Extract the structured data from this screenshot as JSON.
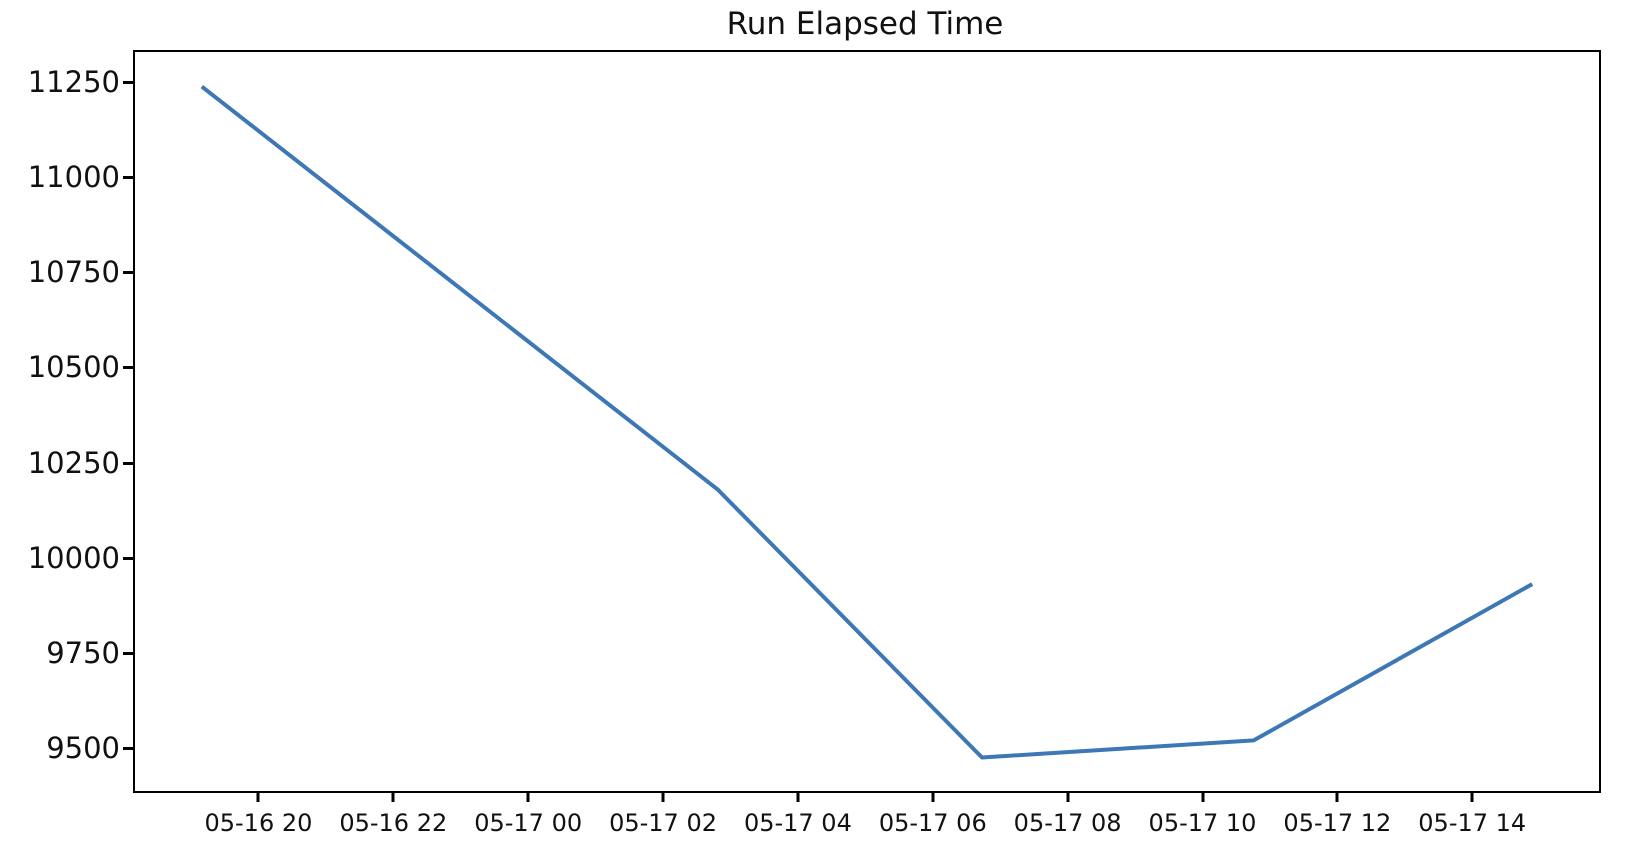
{
  "chart_data": {
    "type": "line",
    "title": "Run Elapsed Time",
    "xlabel": "",
    "ylabel": "",
    "grid": false,
    "legend_visible": false,
    "x_tick_labels": [
      "05-16 20",
      "05-16 22",
      "05-17 00",
      "05-17 02",
      "05-17 04",
      "05-17 06",
      "05-17 08",
      "05-17 10",
      "05-17 12",
      "05-17 14"
    ],
    "x_tick_hours": [
      0,
      2,
      4,
      6,
      8,
      10,
      12,
      14,
      16,
      18
    ],
    "x_axis_note": "x values are hour offsets relative to the 05-16 20 tick",
    "y_ticks": [
      9500,
      9750,
      10000,
      10250,
      10500,
      10750,
      11000,
      11250
    ],
    "xlim_hours": [
      -1.86,
      19.85
    ],
    "ylim": [
      9393,
      11336
    ],
    "series": [
      {
        "name": "run-elapsed-time",
        "x_hours": [
          -0.87,
          6.78,
          10.7,
          14.73,
          18.86
        ],
        "y": [
          11245,
          10186,
          9481,
          9526,
          9937
        ]
      }
    ],
    "line_color": "#3d77b5",
    "line_width": 4,
    "axis_color": "#000000",
    "text_color": "#111111",
    "background_color": "#ffffff"
  }
}
